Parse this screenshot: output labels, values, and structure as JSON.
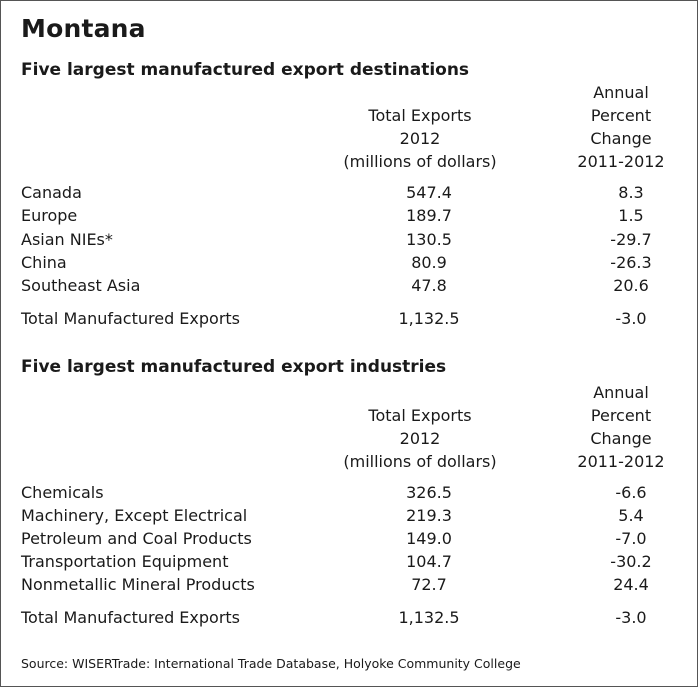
{
  "title": "Montana",
  "destinations": {
    "heading": "Five largest manufactured export destinations",
    "col1": [
      "Total Exports",
      "2012",
      "(millions of dollars)"
    ],
    "col2": [
      "Annual",
      "Percent",
      "Change",
      "2011-2012"
    ],
    "rows": [
      {
        "label": "Canada",
        "total": "547.4",
        "change": "8.3"
      },
      {
        "label": "Europe",
        "total": "189.7",
        "change": "1.5"
      },
      {
        "label": "Asian NIEs*",
        "total": "130.5",
        "change": "-29.7"
      },
      {
        "label": "China",
        "total": "80.9",
        "change": "-26.3"
      },
      {
        "label": "Southeast Asia",
        "total": "47.8",
        "change": "20.6"
      }
    ],
    "total": {
      "label": "Total Manufactured Exports",
      "total": "1,132.5",
      "change": "-3.0"
    }
  },
  "industries": {
    "heading": "Five largest manufactured export industries",
    "col1": [
      "Total Exports",
      "2012",
      "(millions of dollars)"
    ],
    "col2": [
      "Annual",
      "Percent",
      "Change",
      "2011-2012"
    ],
    "rows": [
      {
        "label": "Chemicals",
        "total": "326.5",
        "change": "-6.6"
      },
      {
        "label": "Machinery, Except Electrical",
        "total": "219.3",
        "change": "5.4"
      },
      {
        "label": "Petroleum and Coal Products",
        "total": "149.0",
        "change": "-7.0"
      },
      {
        "label": "Transportation Equipment",
        "total": "104.7",
        "change": "-30.2"
      },
      {
        "label": "Nonmetallic Mineral Products",
        "total": "72.7",
        "change": "24.4"
      }
    ],
    "total": {
      "label": "Total Manufactured Exports",
      "total": "1,132.5",
      "change": "-3.0"
    }
  },
  "source": "Source: WISERTrade: International Trade Database, Holyoke Community College"
}
